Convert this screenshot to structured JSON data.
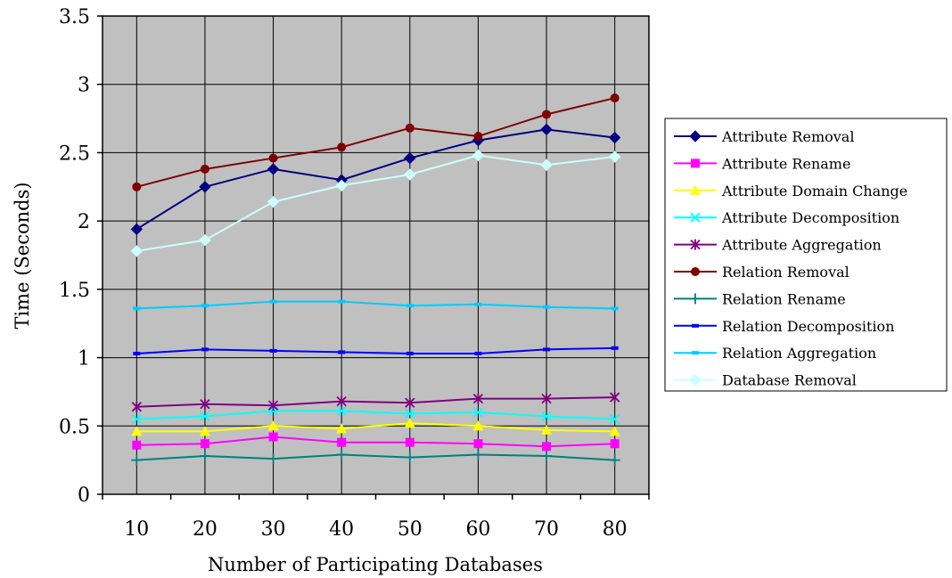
{
  "chart_data": {
    "type": "line",
    "title": "",
    "xlabel": "Number of Participating Databases",
    "ylabel": "Time (Seconds)",
    "x": [
      10,
      20,
      30,
      40,
      50,
      60,
      70,
      80
    ],
    "x_tick_labels": [
      "10",
      "20",
      "30",
      "40",
      "50",
      "60",
      "70",
      "80"
    ],
    "ylim": [
      0,
      3.5
    ],
    "y_ticks": [
      0,
      0.5,
      1,
      1.5,
      2,
      2.5,
      3,
      3.5
    ],
    "y_tick_labels": [
      "0",
      "0.5",
      "1",
      "1.5",
      "2",
      "2.5",
      "3",
      "3.5"
    ],
    "grid": true,
    "plot_background": "#c0c0c0",
    "legend_position": "right",
    "series": [
      {
        "name": "Attribute Removal",
        "color": "#000080",
        "marker": "diamond",
        "values": [
          1.94,
          2.25,
          2.38,
          2.3,
          2.46,
          2.59,
          2.67,
          2.61
        ]
      },
      {
        "name": "Attribute Rename",
        "color": "#ff00ff",
        "marker": "square",
        "values": [
          0.36,
          0.37,
          0.42,
          0.38,
          0.38,
          0.37,
          0.35,
          0.37
        ]
      },
      {
        "name": "Attribute Domain Change",
        "color": "#ffff00",
        "marker": "triangle",
        "values": [
          0.46,
          0.46,
          0.5,
          0.48,
          0.52,
          0.5,
          0.47,
          0.46
        ]
      },
      {
        "name": "Attribute Decomposition",
        "color": "#00ffff",
        "marker": "x",
        "values": [
          0.55,
          0.57,
          0.61,
          0.61,
          0.59,
          0.6,
          0.57,
          0.55
        ]
      },
      {
        "name": "Attribute Aggregation",
        "color": "#800080",
        "marker": "star",
        "values": [
          0.64,
          0.66,
          0.65,
          0.68,
          0.67,
          0.7,
          0.7,
          0.71
        ]
      },
      {
        "name": "Relation Removal",
        "color": "#800000",
        "marker": "circle",
        "values": [
          2.25,
          2.38,
          2.46,
          2.54,
          2.68,
          2.62,
          2.78,
          2.9
        ]
      },
      {
        "name": "Relation Rename",
        "color": "#008080",
        "marker": "plus",
        "values": [
          0.25,
          0.28,
          0.26,
          0.29,
          0.27,
          0.29,
          0.28,
          0.25
        ]
      },
      {
        "name": "Relation Decomposition",
        "color": "#0000ff",
        "marker": "dash",
        "values": [
          1.03,
          1.06,
          1.05,
          1.04,
          1.03,
          1.03,
          1.06,
          1.07
        ]
      },
      {
        "name": "Relation Aggregation",
        "color": "#00ccff",
        "marker": "dash",
        "values": [
          1.36,
          1.38,
          1.41,
          1.41,
          1.38,
          1.39,
          1.37,
          1.36
        ]
      },
      {
        "name": "Database Removal",
        "color": "#ccffff",
        "marker": "diamond",
        "values": [
          1.78,
          1.86,
          2.14,
          2.26,
          2.34,
          2.48,
          2.41,
          2.47
        ]
      }
    ]
  }
}
